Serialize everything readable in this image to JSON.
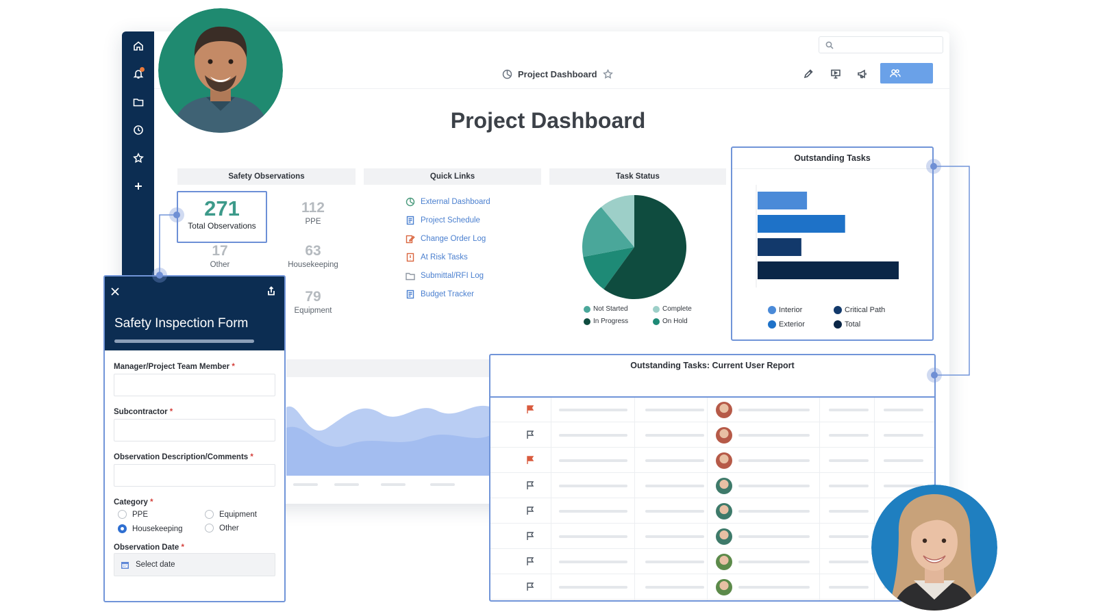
{
  "header": {
    "title": "Project Dashboard",
    "search_placeholder": ""
  },
  "page_title": "Project Dashboard",
  "sections": {
    "safety_observations": "Safety Observations",
    "quick_links": "Quick Links",
    "task_status": "Task Status"
  },
  "safety": {
    "total": {
      "value": "271",
      "label": "Total Observations"
    },
    "stats": [
      {
        "value": "112",
        "label": "PPE"
      },
      {
        "value": "17",
        "label": "Other"
      },
      {
        "value": "63",
        "label": "Housekeeping"
      },
      {
        "value": "79",
        "label": "Equipment"
      }
    ]
  },
  "quick_links": [
    {
      "label": "External Dashboard",
      "icon": "dashboard-icon"
    },
    {
      "label": "Project Schedule",
      "icon": "document-icon"
    },
    {
      "label": "Change Order Log",
      "icon": "edit-document-icon"
    },
    {
      "label": "At Risk Tasks",
      "icon": "warning-document-icon"
    },
    {
      "label": "Submittal/RFI Log",
      "icon": "folder-icon"
    },
    {
      "label": "Budget Tracker",
      "icon": "document-icon"
    }
  ],
  "task_status": {
    "legend": [
      "Not Started",
      "Complete",
      "In Progress",
      "On Hold"
    ]
  },
  "outstanding_tasks": {
    "title": "Outstanding Tasks",
    "legend": [
      "Interior",
      "Critical Path",
      "Exterior",
      "Total"
    ]
  },
  "user_report": {
    "title": "Outstanding Tasks: Current User Report",
    "rows": [
      {
        "flagged": true
      },
      {
        "flagged": false
      },
      {
        "flagged": true
      },
      {
        "flagged": false
      },
      {
        "flagged": false
      },
      {
        "flagged": false
      },
      {
        "flagged": false
      },
      {
        "flagged": false
      }
    ]
  },
  "form": {
    "title": "Safety Inspection Form",
    "progress": 1.0,
    "fields": {
      "manager": "Manager/Project Team Member",
      "subcontractor": "Subcontractor",
      "description": "Observation Description/Comments",
      "category": "Category",
      "date": "Observation Date"
    },
    "required_mark": "*",
    "category_options": [
      "PPE",
      "Equipment",
      "Housekeeping",
      "Other"
    ],
    "category_selected": "Housekeeping",
    "date_placeholder": "Select date"
  },
  "colors": {
    "sidebar": "#0c2d52",
    "accent": "#6aa1e8",
    "panel_border": "#7094d8",
    "link": "#4a7fcf",
    "teal": "#3d9a8a",
    "flag_red": "#d95b3e"
  },
  "chart_data": [
    {
      "type": "pie",
      "categories": [
        "Not Started",
        "Complete",
        "In Progress",
        "On Hold"
      ],
      "values": [
        17,
        11,
        60,
        12
      ],
      "colors": [
        "#4aa79a",
        "#9dcfc8",
        "#0f4c3f",
        "#1e8a76"
      ]
    },
    {
      "type": "bar",
      "orientation": "horizontal",
      "categories": [
        "Interior",
        "Exterior",
        "Critical Path",
        "Total"
      ],
      "values": [
        35,
        62,
        31,
        100
      ],
      "colors": [
        "#4a8ad8",
        "#1e72c8",
        "#12396b",
        "#0a2647"
      ]
    }
  ]
}
